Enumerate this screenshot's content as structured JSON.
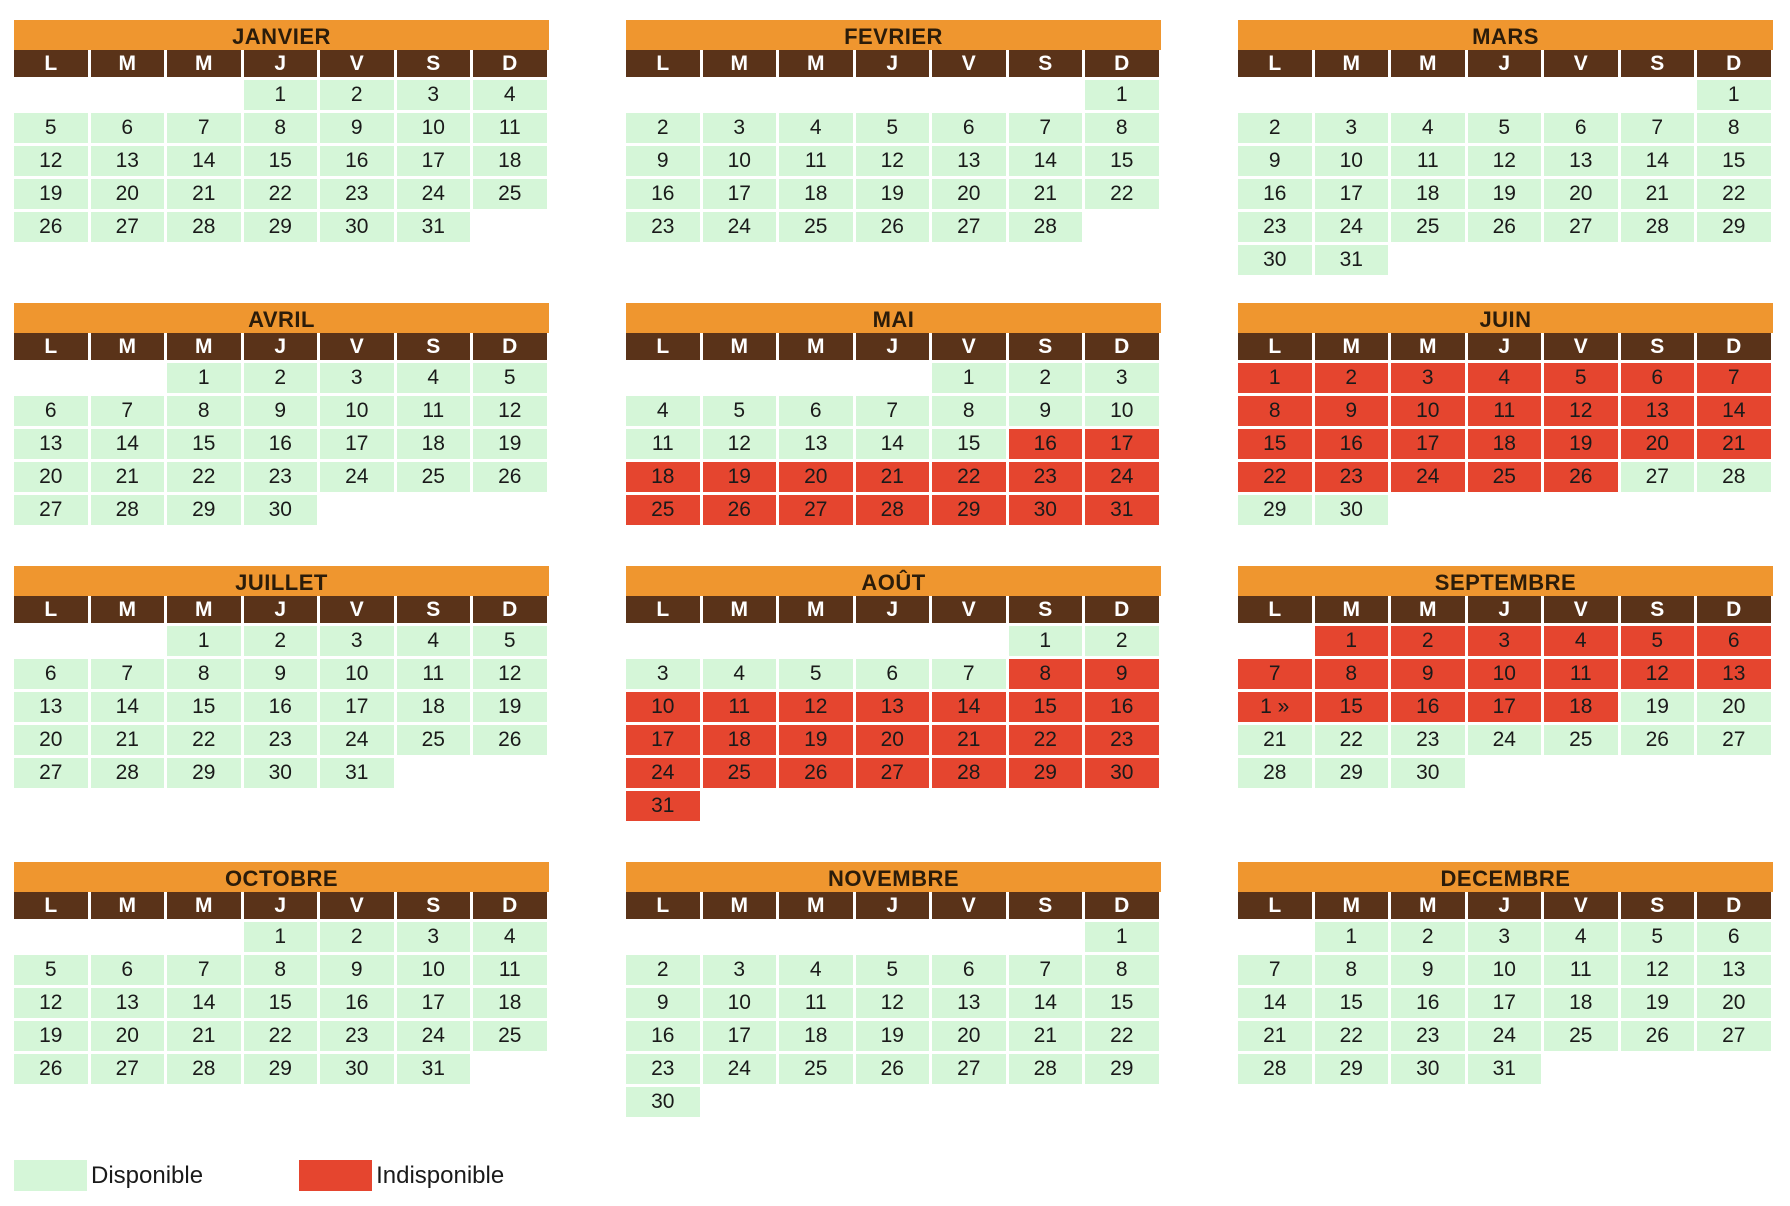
{
  "weekday_labels": [
    "L",
    "M",
    "M",
    "J",
    "V",
    "S",
    "D"
  ],
  "colors": {
    "available": "#d5f6d8",
    "unavailable": "#e5452f",
    "title_bg": "#ef962f",
    "weekday_bg": "#5a3319"
  },
  "months": [
    {
      "name": "JANVIER",
      "start": 4,
      "days": 31,
      "unavailable": []
    },
    {
      "name": "FEVRIER",
      "start": 7,
      "days": 28,
      "unavailable": []
    },
    {
      "name": "MARS",
      "start": 7,
      "days": 31,
      "unavailable": []
    },
    {
      "name": "AVRIL",
      "start": 3,
      "days": 30,
      "unavailable": []
    },
    {
      "name": "MAI",
      "start": 5,
      "days": 31,
      "unavailable": [
        16,
        17,
        18,
        19,
        20,
        21,
        22,
        23,
        24,
        25,
        26,
        27,
        28,
        29,
        30,
        31
      ]
    },
    {
      "name": "JUIN",
      "start": 1,
      "days": 30,
      "unavailable": [
        1,
        2,
        3,
        4,
        5,
        6,
        7,
        8,
        9,
        10,
        11,
        12,
        13,
        14,
        15,
        16,
        17,
        18,
        19,
        20,
        21,
        22,
        23,
        24,
        25,
        26
      ]
    },
    {
      "name": "JUILLET",
      "start": 3,
      "days": 31,
      "unavailable": []
    },
    {
      "name": "AOÛT",
      "start": 6,
      "days": 31,
      "unavailable": [
        8,
        9,
        10,
        11,
        12,
        13,
        14,
        15,
        16,
        17,
        18,
        19,
        20,
        21,
        22,
        23,
        24,
        25,
        26,
        27,
        28,
        29,
        30,
        31
      ]
    },
    {
      "name": "SEPTEMBRE",
      "start": 2,
      "days": 30,
      "unavailable": [
        1,
        2,
        3,
        4,
        5,
        6,
        7,
        8,
        9,
        10,
        11,
        12,
        13,
        14,
        15,
        16,
        17,
        18
      ],
      "overrides": {
        "14": "1 »"
      }
    },
    {
      "name": "OCTOBRE",
      "start": 4,
      "days": 31,
      "unavailable": []
    },
    {
      "name": "NOVEMBRE",
      "start": 7,
      "days": 30,
      "unavailable": []
    },
    {
      "name": "DECEMBRE",
      "start": 2,
      "days": 31,
      "unavailable": []
    }
  ],
  "legend": {
    "available_label": "Disponible",
    "unavailable_label": "Indisponible"
  }
}
